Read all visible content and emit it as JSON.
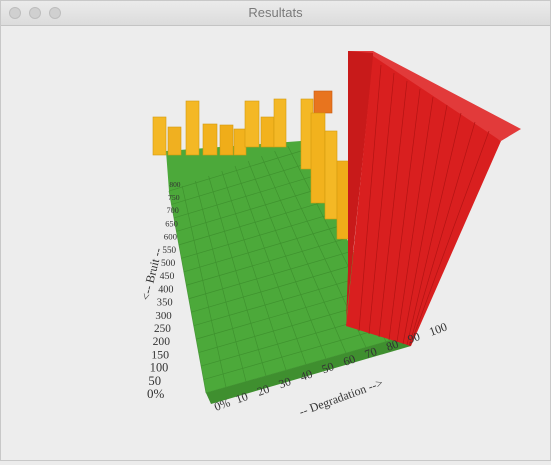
{
  "window": {
    "title": "Resultats",
    "controls": [
      "close-button",
      "minimize-button",
      "zoom-button"
    ]
  },
  "chart_data": {
    "type": "bar",
    "subtype": "3d-bar",
    "x_axis_label": "-- Degradation -->",
    "y_axis_label": "<-- Bruit --",
    "x_ticks": [
      "0%",
      "10",
      "20",
      "30",
      "40",
      "50",
      "60",
      "70",
      "80",
      "90",
      "100"
    ],
    "y_ticks": [
      "0%",
      "50",
      "100",
      "150",
      "200",
      "250",
      "300",
      "350",
      "400",
      "450",
      "500",
      "550",
      "600",
      "650",
      "700",
      "750",
      "800"
    ],
    "colors": {
      "low": "#4caf3e",
      "medium": "#f2b21d",
      "high": "#d91f1f",
      "peak": "#e8741e"
    }
  }
}
